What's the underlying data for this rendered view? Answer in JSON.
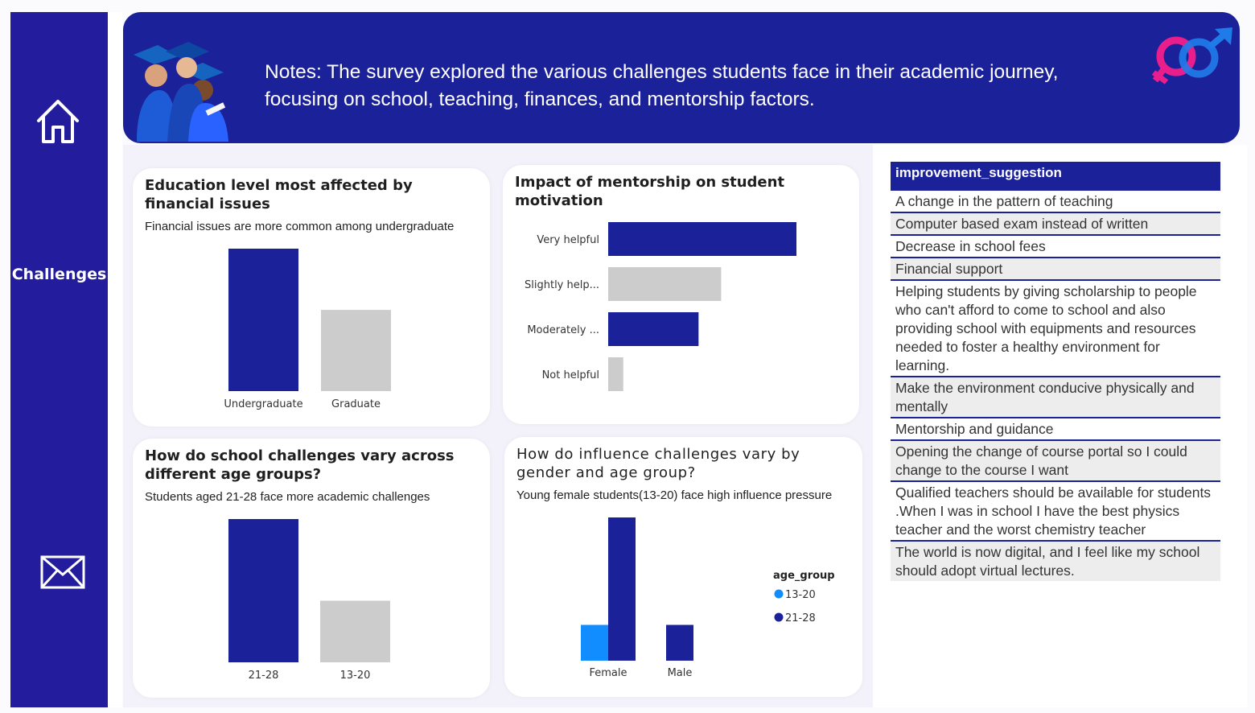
{
  "colors": {
    "primary": "#1b2199",
    "sidebar": "#231d9e",
    "gray_bar": "#cccccc",
    "light_blue": "#118dff"
  },
  "sidebar": {
    "home_icon": "home-icon",
    "nav_label": "Challenges",
    "mail_icon": "envelope-icon"
  },
  "header": {
    "notes": "Notes:  The survey explored the various challenges students face in their academic journey, focusing on school, teaching, finances, and mentorship factors.",
    "graphic": "graduates-image",
    "gender_icon": "gender-symbols-icon"
  },
  "cards": {
    "financial": {
      "title": "Education level most affected by financial issues",
      "subtitle": "Financial issues are more common among undergraduate"
    },
    "mentorship": {
      "title": "Impact of mentorship on student motivation"
    },
    "school_age": {
      "title": "How do school challenges vary across different age groups?",
      "subtitle": "Students aged 21-28 face more academic challenges"
    },
    "influence": {
      "title": "How do influence challenges vary by gender and age group?",
      "subtitle": "Young female students(13-20) face high influence pressure"
    }
  },
  "chart_data": [
    {
      "type": "bar",
      "categories": [
        "Undergraduate",
        "Graduate"
      ],
      "values": [
        100,
        57
      ],
      "colors": [
        "#1b2199",
        "#cccccc"
      ]
    },
    {
      "type": "bar",
      "orientation": "horizontal",
      "categories": [
        "Very helpful",
        "Slightly help...",
        "Moderately ...",
        "Not helpful"
      ],
      "values": [
        100,
        60,
        48,
        8
      ],
      "colors": [
        "#1b2199",
        "#cccccc",
        "#1b2199",
        "#cccccc"
      ]
    },
    {
      "type": "bar",
      "categories": [
        "21-28",
        "13-20"
      ],
      "values": [
        100,
        43
      ],
      "colors": [
        "#1b2199",
        "#cccccc"
      ]
    },
    {
      "type": "bar",
      "categories": [
        "Female",
        "Male"
      ],
      "series": [
        {
          "name": "13-20",
          "color": "#118dff",
          "values": [
            25,
            0
          ]
        },
        {
          "name": "21-28",
          "color": "#1b2199",
          "values": [
            100,
            25
          ]
        }
      ],
      "legend_title": "age_group",
      "legend_position": "right"
    }
  ],
  "table": {
    "header": "improvement_suggestion",
    "rows": [
      "A change in the pattern of teaching",
      "Computer based exam instead of written",
      "Decrease in school fees",
      "Financial support",
      "Helping students by giving scholarship to people who can't afford to come to school and also providing school with equipments and resources needed to foster a healthy environment for learning.",
      "Make the environment conducive physically and mentally",
      "Mentorship and guidance",
      "Opening the change of course portal so I could change to the course I want",
      "Qualified teachers should be available for students .When I was in school I have the best physics teacher and the worst chemistry teacher",
      "The world is now digital, and I feel like my school should adopt virtual lectures."
    ]
  }
}
